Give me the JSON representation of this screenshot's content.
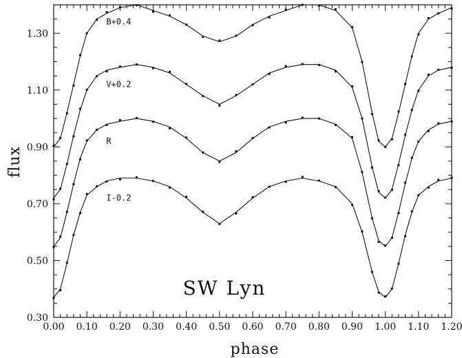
{
  "chart_data": {
    "type": "scatter",
    "title": "",
    "annotation": "SW Lyn",
    "xlabel": "phase",
    "ylabel": "flux",
    "xlim": [
      0.0,
      1.2
    ],
    "ylim": [
      0.3,
      1.4
    ],
    "x_ticks": [
      "0.00",
      "0.10",
      "0.20",
      "0.30",
      "0.40",
      "0.50",
      "0.60",
      "0.70",
      "0.80",
      "0.90",
      "1.00",
      "1.10",
      "1.20"
    ],
    "y_ticks": [
      "0.30",
      "0.50",
      "0.70",
      "0.90",
      "1.10",
      "1.30"
    ],
    "grid": false,
    "legend": "none",
    "series": [
      {
        "label": "B+0.4",
        "offset": 0.4,
        "phase": [
          0.0,
          0.02,
          0.04,
          0.06,
          0.08,
          0.1,
          0.13,
          0.16,
          0.2,
          0.25,
          0.3,
          0.35,
          0.4,
          0.45,
          0.5,
          0.55,
          0.6,
          0.65,
          0.7,
          0.75,
          0.8,
          0.85,
          0.9,
          0.93,
          0.96,
          0.98,
          1.0,
          1.02,
          1.04,
          1.06,
          1.08,
          1.1,
          1.13,
          1.16,
          1.2
        ],
        "flux": [
          0.9,
          0.93,
          1.02,
          1.12,
          1.22,
          1.3,
          1.35,
          1.37,
          1.39,
          1.4,
          1.38,
          1.36,
          1.33,
          1.29,
          1.27,
          1.29,
          1.33,
          1.36,
          1.38,
          1.4,
          1.4,
          1.38,
          1.32,
          1.2,
          1.02,
          0.92,
          0.9,
          0.93,
          1.02,
          1.12,
          1.22,
          1.3,
          1.35,
          1.37,
          1.39
        ]
      },
      {
        "label": "V+0.2",
        "offset": 0.2,
        "phase": [
          0.0,
          0.02,
          0.04,
          0.06,
          0.08,
          0.1,
          0.13,
          0.16,
          0.2,
          0.25,
          0.3,
          0.35,
          0.4,
          0.45,
          0.5,
          0.55,
          0.6,
          0.65,
          0.7,
          0.75,
          0.8,
          0.85,
          0.9,
          0.93,
          0.96,
          0.98,
          1.0,
          1.02,
          1.04,
          1.06,
          1.08,
          1.1,
          1.13,
          1.16,
          1.2
        ],
        "flux": [
          0.72,
          0.75,
          0.84,
          0.94,
          1.03,
          1.1,
          1.15,
          1.17,
          1.18,
          1.19,
          1.18,
          1.16,
          1.12,
          1.08,
          1.05,
          1.08,
          1.12,
          1.16,
          1.18,
          1.19,
          1.19,
          1.17,
          1.11,
          1.0,
          0.83,
          0.74,
          0.72,
          0.75,
          0.84,
          0.94,
          1.03,
          1.1,
          1.15,
          1.17,
          1.18
        ]
      },
      {
        "label": "R",
        "offset": 0.0,
        "phase": [
          0.0,
          0.02,
          0.04,
          0.06,
          0.08,
          0.1,
          0.13,
          0.16,
          0.2,
          0.25,
          0.3,
          0.35,
          0.4,
          0.45,
          0.5,
          0.55,
          0.6,
          0.65,
          0.7,
          0.75,
          0.8,
          0.85,
          0.9,
          0.93,
          0.96,
          0.98,
          1.0,
          1.02,
          1.04,
          1.06,
          1.08,
          1.1,
          1.13,
          1.16,
          1.2
        ],
        "flux": [
          0.55,
          0.58,
          0.67,
          0.77,
          0.86,
          0.92,
          0.96,
          0.98,
          0.99,
          1.0,
          0.99,
          0.97,
          0.93,
          0.88,
          0.85,
          0.88,
          0.93,
          0.97,
          0.99,
          1.0,
          1.0,
          0.98,
          0.93,
          0.81,
          0.65,
          0.57,
          0.55,
          0.58,
          0.67,
          0.77,
          0.86,
          0.92,
          0.96,
          0.98,
          0.99
        ]
      },
      {
        "label": "I-0.2",
        "offset": -0.2,
        "phase": [
          0.0,
          0.02,
          0.04,
          0.06,
          0.08,
          0.1,
          0.13,
          0.16,
          0.2,
          0.25,
          0.3,
          0.35,
          0.4,
          0.45,
          0.5,
          0.55,
          0.6,
          0.65,
          0.7,
          0.75,
          0.8,
          0.85,
          0.9,
          0.93,
          0.96,
          0.98,
          1.0,
          1.02,
          1.04,
          1.06,
          1.08,
          1.1,
          1.13,
          1.16,
          1.2
        ],
        "flux": [
          0.37,
          0.4,
          0.49,
          0.59,
          0.67,
          0.73,
          0.76,
          0.78,
          0.79,
          0.79,
          0.78,
          0.76,
          0.72,
          0.67,
          0.63,
          0.67,
          0.72,
          0.76,
          0.78,
          0.79,
          0.78,
          0.76,
          0.7,
          0.6,
          0.46,
          0.39,
          0.37,
          0.4,
          0.49,
          0.59,
          0.67,
          0.73,
          0.76,
          0.78,
          0.79
        ]
      }
    ]
  }
}
